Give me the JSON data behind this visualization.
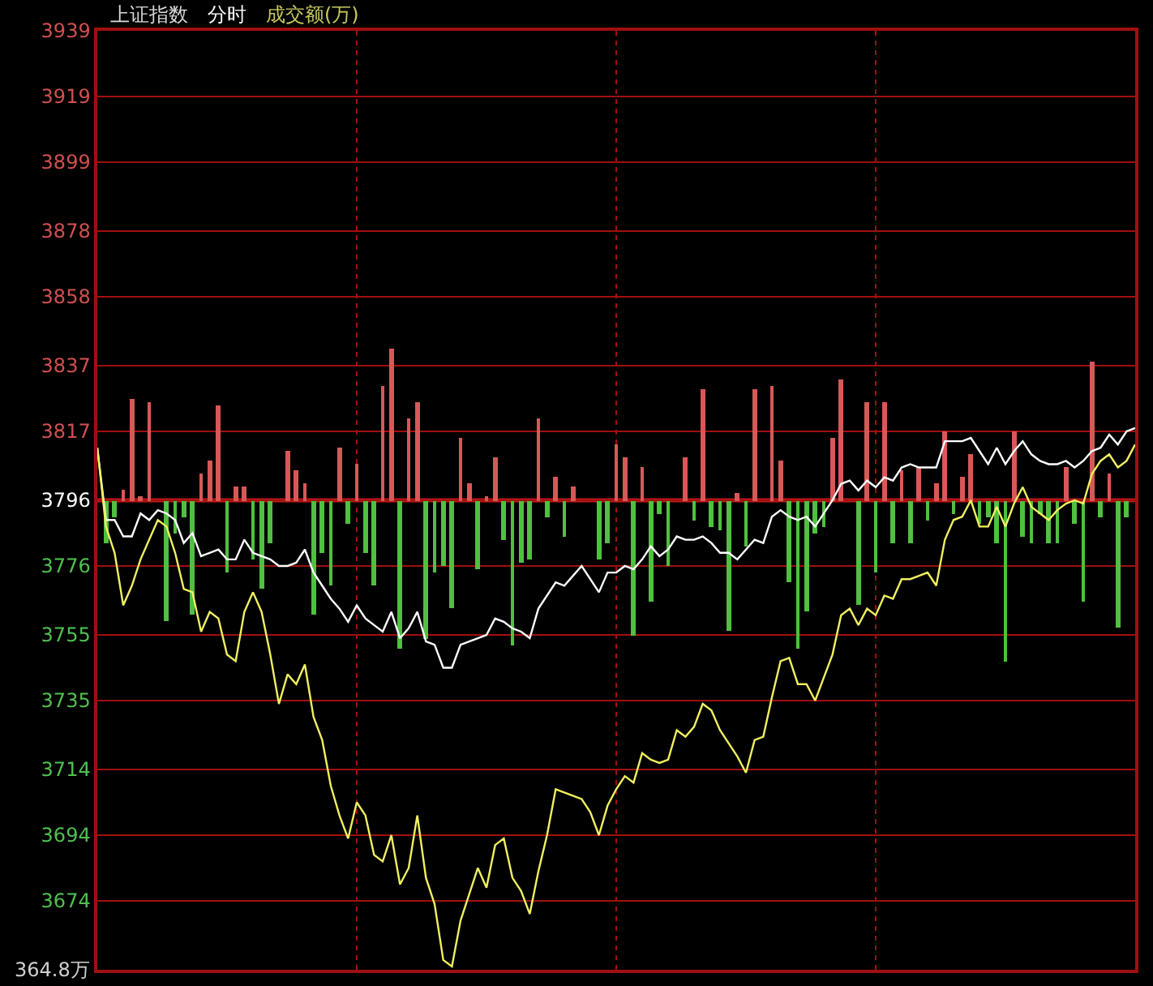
{
  "chart_data": {
    "type": "line",
    "title": "上证指数",
    "subtitle": "分时",
    "annotations": [
      "成交额(万)",
      "364.8万"
    ],
    "categories": [
      null,
      null,
      null,
      null,
      null,
      null,
      null,
      null,
      null,
      null,
      null,
      null,
      null,
      null,
      null,
      null,
      null,
      null,
      null,
      null,
      null,
      null,
      null,
      null,
      null,
      null,
      null,
      null,
      null,
      null,
      null,
      null,
      null,
      null,
      null,
      null,
      null,
      null,
      null,
      null,
      null,
      null,
      null,
      null,
      null,
      null,
      null,
      null,
      null,
      null,
      null,
      null,
      null,
      null,
      null,
      null,
      null,
      null,
      null,
      null,
      null,
      null,
      null,
      null,
      null,
      null,
      null,
      null,
      null,
      null,
      null,
      null,
      null,
      null,
      null,
      null,
      null,
      null,
      null,
      null,
      null,
      null,
      null,
      null,
      null,
      null,
      null,
      null,
      null,
      null,
      null,
      null,
      null,
      null,
      null,
      null,
      null,
      null,
      null,
      null,
      null,
      null,
      null,
      null,
      null,
      null,
      null,
      null,
      null,
      null,
      null,
      null,
      null,
      null,
      null,
      null,
      null,
      null,
      null,
      null,
      null
    ],
    "ylim": [
      3653,
      3939
    ],
    "yticks": [
      3939,
      3919,
      3899,
      3878,
      3858,
      3837,
      3817,
      3796,
      3776,
      3755,
      3735,
      3714,
      3694,
      3674
    ],
    "grid": true,
    "marker": "none",
    "line_style": "solid",
    "ref_lines": [
      {
        "axis": "y",
        "value": 3796,
        "color": "#c01818"
      }
    ],
    "series": [
      {
        "type": "bar",
        "values": [
          null,
          -13,
          -5,
          3,
          31,
          1,
          30,
          null,
          -37,
          -10,
          -5,
          -35,
          8,
          12,
          29,
          -22,
          4,
          4,
          -18,
          -27,
          -13,
          null,
          15,
          9,
          5,
          -35,
          -16,
          -26,
          16,
          -7,
          11,
          -16,
          -26,
          35,
          46,
          -45,
          25,
          30,
          -42,
          -22,
          -20,
          -33,
          19,
          5,
          -21,
          1,
          13,
          -12,
          -44,
          -19,
          -18,
          25,
          -5,
          7,
          -11,
          4,
          null,
          null,
          -18,
          -13,
          17,
          13,
          -41,
          10,
          -31,
          -4,
          -20,
          null,
          13,
          -6,
          34,
          -8,
          -9,
          -40,
          2,
          -14,
          34,
          null,
          35,
          12,
          -25,
          -45,
          -34,
          -10,
          -8,
          19,
          37,
          null,
          -32,
          30,
          -22,
          30,
          -13,
          9,
          -13,
          10,
          -6,
          5,
          21,
          -4,
          7,
          14,
          -7,
          -5,
          -13,
          -49,
          21,
          -11,
          -13,
          -4,
          -13,
          -13,
          10,
          -7,
          -31,
          42,
          -5,
          8,
          -39,
          -5,
          null
        ],
        "base": [
          null,
          3796,
          3796,
          3796,
          3796,
          3796,
          3796,
          null,
          3796,
          3796,
          3796,
          3796,
          3796,
          3796,
          3796,
          3796,
          3796,
          3796,
          3796,
          3796,
          3796,
          null,
          3796,
          3796,
          3796,
          3796,
          3796,
          3796,
          3796,
          3796,
          3796,
          3796,
          3796,
          3796,
          3796,
          3796,
          3796,
          3796,
          3796,
          3796,
          3796,
          3796,
          3796,
          3796,
          3796,
          3796,
          3796,
          3796,
          3796,
          3796,
          3796,
          3796,
          3796,
          3796,
          3796,
          3796,
          null,
          null,
          3796,
          3796,
          3796,
          3796,
          3796,
          3796,
          3796,
          3796,
          3796,
          null,
          3796,
          3796,
          3796,
          3796,
          3796,
          3796,
          3796,
          3796,
          3796,
          null,
          3796,
          3796,
          3796,
          3796,
          3796,
          3796,
          3796,
          3796,
          3796,
          null,
          3796,
          3796,
          3796,
          3796,
          3796,
          3796,
          3796,
          3796,
          3796,
          3796,
          3796,
          3796,
          3796,
          3796,
          3796,
          3796,
          3796,
          3796,
          3796,
          3796,
          3796,
          3796,
          3796,
          3796,
          3796,
          3796,
          3796,
          3796,
          3796,
          3796,
          3796,
          3796,
          null
        ],
        "colors": [
          null,
          "#50c040",
          "#50c040",
          "#d85858",
          "#d85858",
          "#d85858",
          "#d85858",
          null,
          "#50c040",
          "#50c040",
          "#50c040",
          "#50c040",
          "#d85858",
          "#d85858",
          "#d85858",
          "#50c040",
          "#d85858",
          "#d85858",
          "#50c040",
          "#50c040",
          "#50c040",
          null,
          "#d85858",
          "#d85858",
          "#d85858",
          "#50c040",
          "#50c040",
          "#50c040",
          "#d85858",
          "#50c040",
          "#d85858",
          "#50c040",
          "#50c040",
          "#d85858",
          "#d85858",
          "#50c040",
          "#d85858",
          "#d85858",
          "#50c040",
          "#50c040",
          "#50c040",
          "#50c040",
          "#d85858",
          "#d85858",
          "#50c040",
          "#d85858",
          "#d85858",
          "#50c040",
          "#50c040",
          "#50c040",
          "#50c040",
          "#d85858",
          "#50c040",
          "#d85858",
          "#50c040",
          "#d85858",
          null,
          null,
          "#50c040",
          "#50c040",
          "#d85858",
          "#d85858",
          "#50c040",
          "#d85858",
          "#50c040",
          "#50c040",
          "#50c040",
          null,
          "#d85858",
          "#50c040",
          "#d85858",
          "#50c040",
          "#50c040",
          "#50c040",
          "#d85858",
          "#50c040",
          "#d85858",
          null,
          "#d85858",
          "#d85858",
          "#50c040",
          "#50c040",
          "#50c040",
          "#50c040",
          "#50c040",
          "#d85858",
          "#d85858",
          null,
          "#50c040",
          "#d85858",
          "#50c040",
          "#d85858",
          "#50c040",
          "#d85858",
          "#50c040",
          "#d85858",
          "#50c040",
          "#d85858",
          "#d85858",
          "#50c040",
          "#d85858",
          "#d85858",
          "#50c040",
          "#50c040",
          "#50c040",
          "#50c040",
          "#d85858",
          "#50c040",
          "#50c040",
          "#50c040",
          "#50c040",
          "#50c040",
          "#d85858",
          "#50c040",
          "#50c040",
          "#d85858",
          "#50c040",
          "#d85858",
          "#50c040",
          "#50c040",
          null
        ]
      },
      {
        "color": "#ffffff",
        "values": [
          3812,
          3790,
          3790,
          3785,
          3785,
          3792,
          3790,
          3793,
          3792,
          3790,
          3783,
          3786,
          3779,
          3780,
          3781,
          3778,
          3778,
          3784,
          3780,
          3779,
          3778,
          3776,
          3776,
          3777,
          3781,
          3774,
          3770,
          3766,
          3763,
          3759,
          3764,
          3760,
          3758,
          3756,
          3762,
          3754,
          3757,
          3762,
          3753,
          3752,
          3745,
          3745,
          3752,
          3753,
          3754,
          3755,
          3760,
          3759,
          3757,
          3756,
          3754,
          3763,
          3767,
          3771,
          3770,
          3773,
          3776,
          3772,
          3768,
          3774,
          3774,
          3776,
          3775,
          3778,
          3782,
          3779,
          3781,
          3785,
          3784,
          3784,
          3785,
          3783,
          3780,
          3780,
          3778,
          3781,
          3784,
          3783,
          3791,
          3793,
          3791,
          3790,
          3791,
          3788,
          3792,
          3796,
          3801,
          3802,
          3799,
          3802,
          3800,
          3803,
          3802,
          3806,
          3807,
          3806,
          3806,
          3806,
          3814,
          3814,
          3814,
          3815,
          3811,
          3807,
          3812,
          3807,
          3811,
          3814,
          3810,
          3808,
          3807,
          3807,
          3808,
          3806,
          3808,
          3811,
          3812,
          3816,
          3813,
          3817,
          3818
        ]
      },
      {
        "color": "#f0f060",
        "values": [
          3812,
          3788,
          3780,
          3764,
          3770,
          3778,
          3784,
          3790,
          3788,
          3780,
          3769,
          3768,
          3756,
          3762,
          3760,
          3749,
          3747,
          3762,
          3768,
          3762,
          3749,
          3734,
          3743,
          3740,
          3746,
          3730,
          3723,
          3709,
          3700,
          3693,
          3704,
          3700,
          3688,
          3686,
          3694,
          3679,
          3684,
          3700,
          3681,
          3673,
          3656,
          3654,
          3668,
          3676,
          3684,
          3678,
          3691,
          3693,
          3681,
          3677,
          3670,
          3683,
          3694,
          3708,
          3707,
          3706,
          3705,
          3701,
          3694,
          3703,
          3708,
          3712,
          3710,
          3719,
          3717,
          3716,
          3717,
          3726,
          3724,
          3727,
          3734,
          3732,
          3726,
          3722,
          3718,
          3713,
          3723,
          3724,
          3736,
          3747,
          3748,
          3740,
          3740,
          3735,
          3742,
          3749,
          3761,
          3763,
          3758,
          3763,
          3761,
          3767,
          3766,
          3772,
          3772,
          3773,
          3774,
          3770,
          3784,
          3790,
          3791,
          3796,
          3788,
          3788,
          3794,
          3788,
          3795,
          3800,
          3794,
          3792,
          3790,
          3793,
          3795,
          3796,
          3795,
          3804,
          3808,
          3810,
          3806,
          3808,
          3813
        ]
      }
    ]
  }
}
